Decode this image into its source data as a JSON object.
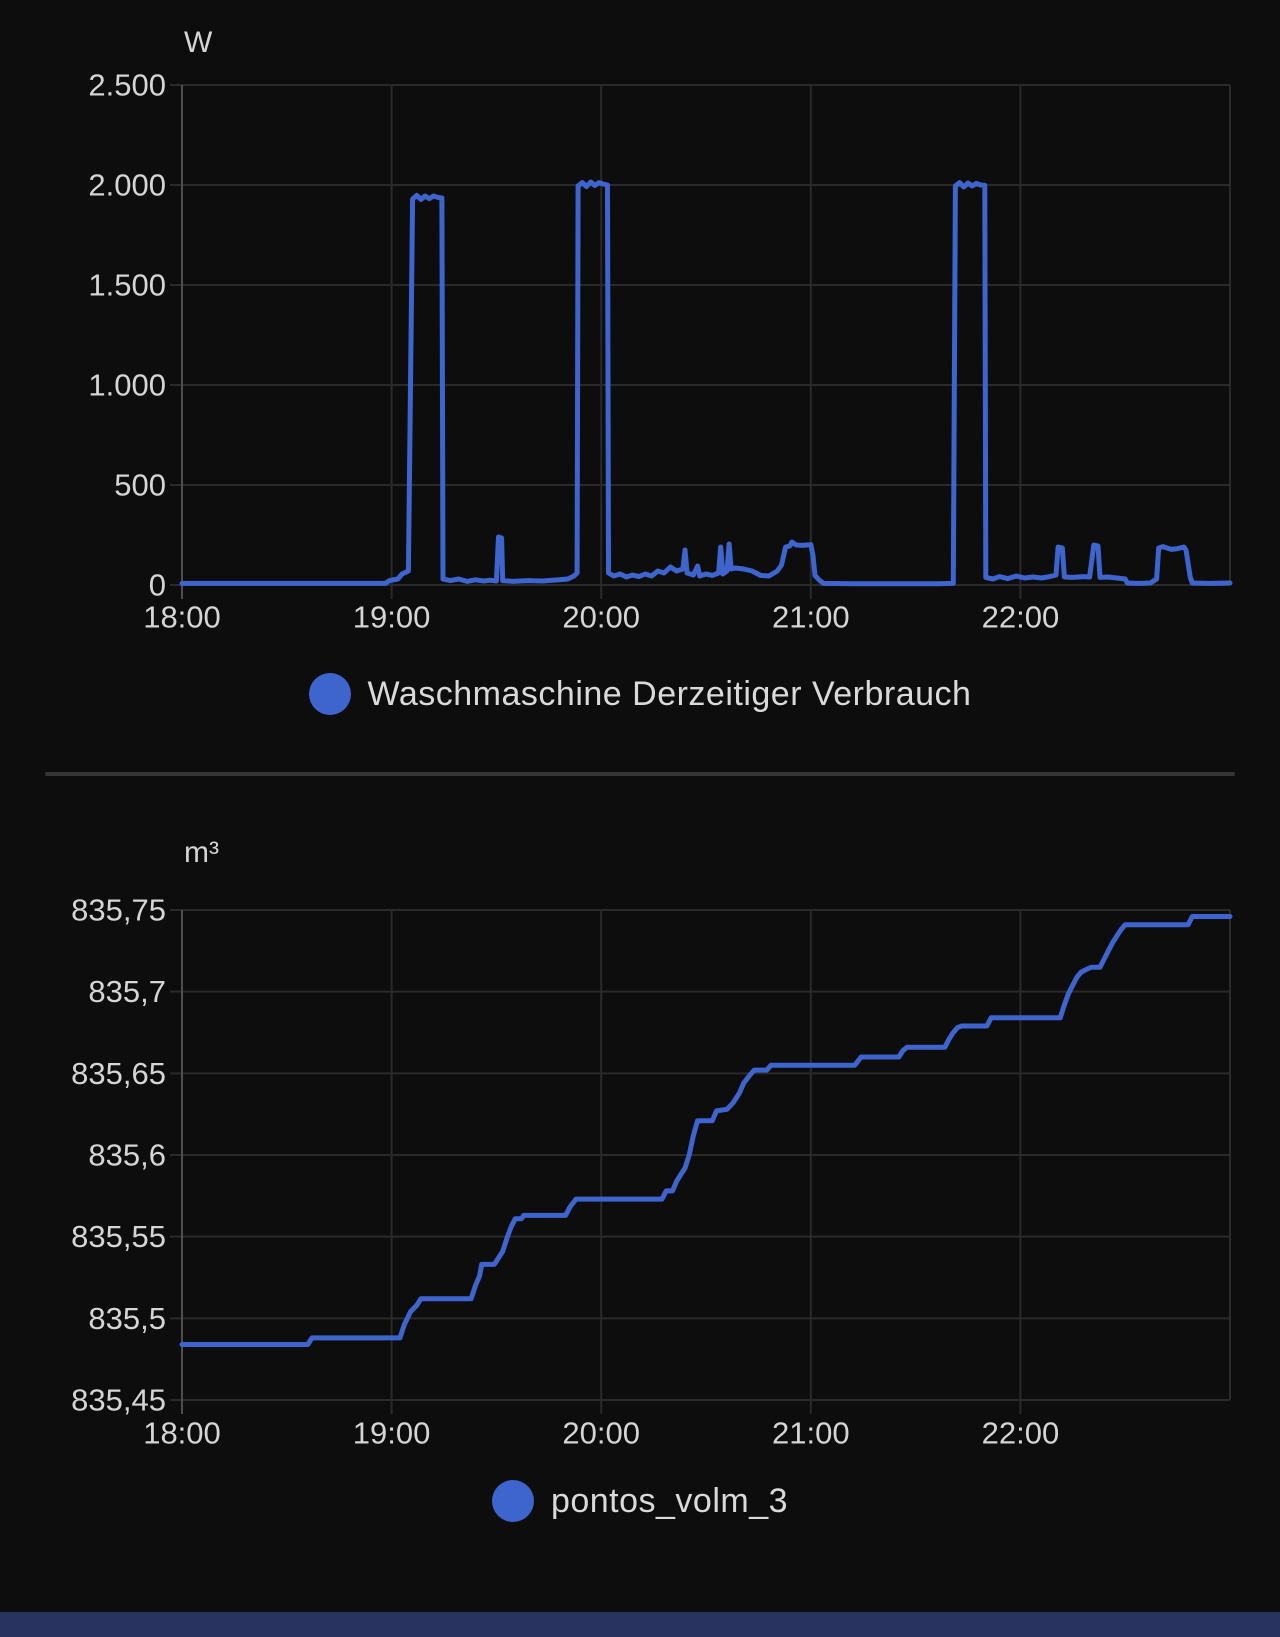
{
  "page": {
    "background": "#0d0d0d",
    "grid_color": "#2a2a2a",
    "axis_color": "#4f4f4f",
    "tick_text_color": "#d5d5d5",
    "divider_color": "#363636",
    "bottom_bar_color": "#28335f",
    "accent_blue": "#3e64cd"
  },
  "chart_data": [
    {
      "type": "line",
      "unit": "W",
      "legend": "Waschmaschine Derzeitiger Verbrauch",
      "series_color": "#3e64cd",
      "legend_position": "bottom-center",
      "grid": true,
      "x_range": [
        18,
        23
      ],
      "y_range": [
        0,
        2500
      ],
      "x_ticks": [
        {
          "t": 18,
          "label": "18:00"
        },
        {
          "t": 19,
          "label": "19:00"
        },
        {
          "t": 20,
          "label": "20:00"
        },
        {
          "t": 21,
          "label": "21:00"
        },
        {
          "t": 22,
          "label": "22:00"
        }
      ],
      "y_ticks": [
        {
          "v": 0,
          "label": "0"
        },
        {
          "v": 500,
          "label": "500"
        },
        {
          "v": 1000,
          "label": "1.000"
        },
        {
          "v": 1500,
          "label": "1.500"
        },
        {
          "v": 2000,
          "label": "2.000"
        },
        {
          "v": 2500,
          "label": "2.500"
        }
      ],
      "points": [
        [
          18.0,
          8
        ],
        [
          18.97,
          8
        ],
        [
          18.99,
          22
        ],
        [
          19.03,
          30
        ],
        [
          19.05,
          55
        ],
        [
          19.08,
          70
        ],
        [
          19.1,
          1930
        ],
        [
          19.12,
          1948
        ],
        [
          19.14,
          1928
        ],
        [
          19.16,
          1945
        ],
        [
          19.18,
          1932
        ],
        [
          19.2,
          1945
        ],
        [
          19.22,
          1938
        ],
        [
          19.24,
          1935
        ],
        [
          19.245,
          30
        ],
        [
          19.28,
          22
        ],
        [
          19.32,
          30
        ],
        [
          19.36,
          18
        ],
        [
          19.4,
          26
        ],
        [
          19.44,
          20
        ],
        [
          19.47,
          24
        ],
        [
          19.5,
          20
        ],
        [
          19.51,
          240
        ],
        [
          19.525,
          235
        ],
        [
          19.53,
          22
        ],
        [
          19.58,
          18
        ],
        [
          19.65,
          22
        ],
        [
          19.72,
          20
        ],
        [
          19.8,
          26
        ],
        [
          19.84,
          30
        ],
        [
          19.87,
          45
        ],
        [
          19.885,
          60
        ],
        [
          19.89,
          1995
        ],
        [
          19.91,
          2012
        ],
        [
          19.93,
          1992
        ],
        [
          19.95,
          2015
        ],
        [
          19.97,
          1998
        ],
        [
          19.99,
          2012
        ],
        [
          20.01,
          2005
        ],
        [
          20.03,
          2000
        ],
        [
          20.035,
          60
        ],
        [
          20.06,
          45
        ],
        [
          20.09,
          55
        ],
        [
          20.12,
          40
        ],
        [
          20.15,
          50
        ],
        [
          20.18,
          42
        ],
        [
          20.21,
          55
        ],
        [
          20.24,
          45
        ],
        [
          20.27,
          70
        ],
        [
          20.3,
          60
        ],
        [
          20.33,
          90
        ],
        [
          20.36,
          70
        ],
        [
          20.39,
          80
        ],
        [
          20.4,
          175
        ],
        [
          20.41,
          60
        ],
        [
          20.44,
          50
        ],
        [
          20.46,
          95
        ],
        [
          20.47,
          45
        ],
        [
          20.5,
          55
        ],
        [
          20.53,
          48
        ],
        [
          20.56,
          60
        ],
        [
          20.57,
          190
        ],
        [
          20.58,
          55
        ],
        [
          20.6,
          70
        ],
        [
          20.61,
          205
        ],
        [
          20.62,
          80
        ],
        [
          20.64,
          85
        ],
        [
          20.68,
          80
        ],
        [
          20.72,
          70
        ],
        [
          20.76,
          48
        ],
        [
          20.8,
          45
        ],
        [
          20.84,
          70
        ],
        [
          20.86,
          100
        ],
        [
          20.88,
          190
        ],
        [
          20.9,
          195
        ],
        [
          20.91,
          215
        ],
        [
          20.93,
          200
        ],
        [
          20.96,
          198
        ],
        [
          21.0,
          202
        ],
        [
          21.01,
          150
        ],
        [
          21.02,
          48
        ],
        [
          21.04,
          25
        ],
        [
          21.06,
          8
        ],
        [
          21.2,
          6
        ],
        [
          21.4,
          6
        ],
        [
          21.6,
          6
        ],
        [
          21.68,
          8
        ],
        [
          21.69,
          1995
        ],
        [
          21.71,
          2012
        ],
        [
          21.73,
          1990
        ],
        [
          21.75,
          2010
        ],
        [
          21.77,
          1995
        ],
        [
          21.79,
          2008
        ],
        [
          21.81,
          2000
        ],
        [
          21.83,
          1998
        ],
        [
          21.835,
          38
        ],
        [
          21.87,
          30
        ],
        [
          21.9,
          42
        ],
        [
          21.94,
          32
        ],
        [
          21.98,
          45
        ],
        [
          22.02,
          35
        ],
        [
          22.06,
          40
        ],
        [
          22.1,
          35
        ],
        [
          22.14,
          42
        ],
        [
          22.17,
          50
        ],
        [
          22.18,
          190
        ],
        [
          22.2,
          185
        ],
        [
          22.21,
          40
        ],
        [
          22.25,
          38
        ],
        [
          22.3,
          42
        ],
        [
          22.33,
          40
        ],
        [
          22.35,
          200
        ],
        [
          22.37,
          195
        ],
        [
          22.38,
          38
        ],
        [
          22.42,
          40
        ],
        [
          22.46,
          35
        ],
        [
          22.5,
          30
        ],
        [
          22.51,
          10
        ],
        [
          22.56,
          8
        ],
        [
          22.62,
          10
        ],
        [
          22.65,
          30
        ],
        [
          22.66,
          185
        ],
        [
          22.68,
          192
        ],
        [
          22.72,
          178
        ],
        [
          22.75,
          182
        ],
        [
          22.78,
          190
        ],
        [
          22.79,
          175
        ],
        [
          22.81,
          40
        ],
        [
          22.82,
          10
        ],
        [
          22.9,
          8
        ],
        [
          23.0,
          10
        ]
      ]
    },
    {
      "type": "line",
      "unit": "m³",
      "legend": "pontos_volm_3",
      "series_color": "#3e64cd",
      "legend_position": "bottom-center",
      "grid": true,
      "x_range": [
        18,
        23
      ],
      "y_range": [
        835.45,
        835.75
      ],
      "x_ticks": [
        {
          "t": 18,
          "label": "18:00"
        },
        {
          "t": 19,
          "label": "19:00"
        },
        {
          "t": 20,
          "label": "20:00"
        },
        {
          "t": 21,
          "label": "21:00"
        },
        {
          "t": 22,
          "label": "22:00"
        }
      ],
      "y_ticks": [
        {
          "v": 835.45,
          "label": "835,45"
        },
        {
          "v": 835.5,
          "label": "835,5"
        },
        {
          "v": 835.55,
          "label": "835,55"
        },
        {
          "v": 835.6,
          "label": "835,6"
        },
        {
          "v": 835.65,
          "label": "835,65"
        },
        {
          "v": 835.7,
          "label": "835,7"
        },
        {
          "v": 835.75,
          "label": "835,75"
        }
      ],
      "points": [
        [
          18.0,
          835.484
        ],
        [
          18.6,
          835.484
        ],
        [
          18.62,
          835.488
        ],
        [
          19.04,
          835.488
        ],
        [
          19.06,
          835.496
        ],
        [
          19.09,
          835.504
        ],
        [
          19.12,
          835.508
        ],
        [
          19.14,
          835.512
        ],
        [
          19.38,
          835.512
        ],
        [
          19.4,
          835.52
        ],
        [
          19.42,
          835.526
        ],
        [
          19.43,
          835.533
        ],
        [
          19.49,
          835.533
        ],
        [
          19.51,
          835.537
        ],
        [
          19.53,
          835.541
        ],
        [
          19.55,
          835.549
        ],
        [
          19.57,
          835.556
        ],
        [
          19.59,
          835.561
        ],
        [
          19.62,
          835.561
        ],
        [
          19.63,
          835.563
        ],
        [
          19.83,
          835.563
        ],
        [
          19.85,
          835.568
        ],
        [
          19.88,
          835.573
        ],
        [
          20.29,
          835.573
        ],
        [
          20.31,
          835.578
        ],
        [
          20.34,
          835.578
        ],
        [
          20.36,
          835.584
        ],
        [
          20.38,
          835.588
        ],
        [
          20.4,
          835.592
        ],
        [
          20.42,
          835.6
        ],
        [
          20.44,
          835.612
        ],
        [
          20.46,
          835.621
        ],
        [
          20.53,
          835.621
        ],
        [
          20.55,
          835.627
        ],
        [
          20.6,
          835.628
        ],
        [
          20.63,
          835.632
        ],
        [
          20.66,
          835.638
        ],
        [
          20.68,
          835.644
        ],
        [
          20.71,
          835.649
        ],
        [
          20.73,
          835.652
        ],
        [
          20.79,
          835.652
        ],
        [
          20.81,
          835.655
        ],
        [
          21.21,
          835.655
        ],
        [
          21.24,
          835.66
        ],
        [
          21.42,
          835.66
        ],
        [
          21.44,
          835.664
        ],
        [
          21.46,
          835.666
        ],
        [
          21.64,
          835.666
        ],
        [
          21.66,
          835.671
        ],
        [
          21.68,
          835.675
        ],
        [
          21.7,
          835.678
        ],
        [
          21.72,
          835.679
        ],
        [
          21.84,
          835.679
        ],
        [
          21.86,
          835.684
        ],
        [
          22.19,
          835.684
        ],
        [
          22.21,
          835.692
        ],
        [
          22.23,
          835.699
        ],
        [
          22.25,
          835.704
        ],
        [
          22.27,
          835.709
        ],
        [
          22.29,
          835.712
        ],
        [
          22.32,
          835.714
        ],
        [
          22.34,
          835.715
        ],
        [
          22.38,
          835.715
        ],
        [
          22.4,
          835.72
        ],
        [
          22.42,
          835.725
        ],
        [
          22.44,
          835.73
        ],
        [
          22.46,
          835.734
        ],
        [
          22.48,
          835.738
        ],
        [
          22.5,
          835.741
        ],
        [
          22.8,
          835.741
        ],
        [
          22.82,
          835.746
        ],
        [
          23.0,
          835.746
        ]
      ]
    }
  ]
}
